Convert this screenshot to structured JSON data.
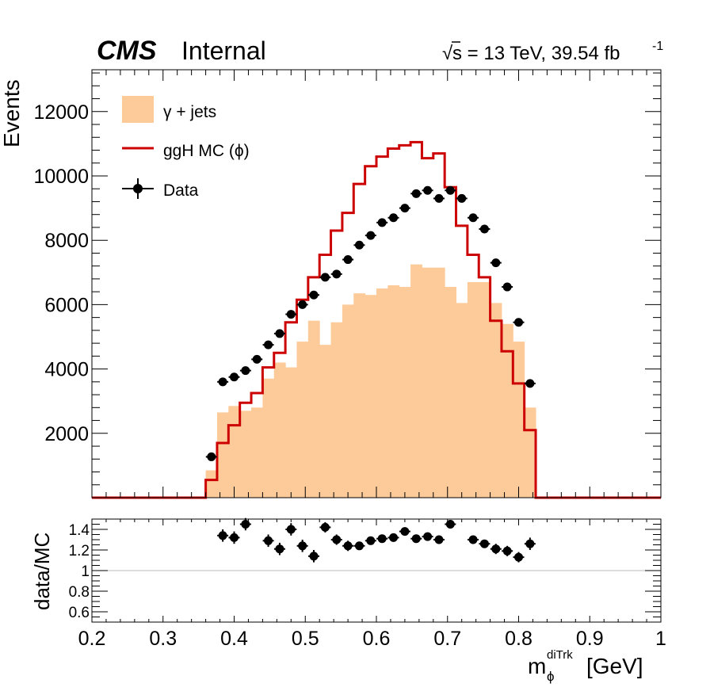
{
  "header": {
    "experiment": "CMS",
    "status": "Internal",
    "energy_lumi_pre": "s = 13 TeV, 39.54 fb",
    "lumi_exp": "-1"
  },
  "legend": {
    "gjets": "γ + jets",
    "ggh": "ggH MC (ϕ)",
    "data": "Data"
  },
  "colors": {
    "gjets_fill": "#FDCA99",
    "ggh_line": "#CC0000",
    "data_marker": "#000000",
    "ratio_line": "#BBBBBB"
  },
  "chart_data": [
    {
      "type": "histogram",
      "ylabel": "Events",
      "xlim": [
        0.2,
        1.0
      ],
      "ylim": [
        0,
        13300
      ],
      "y_ticks": [
        2000,
        4000,
        6000,
        8000,
        10000,
        12000
      ],
      "bin_edges": [
        0.36,
        0.376,
        0.392,
        0.408,
        0.424,
        0.44,
        0.456,
        0.472,
        0.488,
        0.504,
        0.52,
        0.536,
        0.552,
        0.568,
        0.584,
        0.6,
        0.616,
        0.632,
        0.648,
        0.664,
        0.68,
        0.696,
        0.712,
        0.728,
        0.744,
        0.76,
        0.776,
        0.792,
        0.808,
        0.824
      ],
      "series": [
        {
          "name": "γ + jets",
          "kind": "filled-bars",
          "values": [
            850,
            2650,
            2850,
            2700,
            2800,
            3700,
            4200,
            4050,
            4850,
            5500,
            4750,
            5450,
            6000,
            6350,
            6300,
            6500,
            6600,
            6550,
            7250,
            7150,
            7150,
            6550,
            6050,
            6700,
            6700,
            6050,
            5400,
            4850,
            2800
          ]
        },
        {
          "name": "ggH MC (ϕ)",
          "kind": "step",
          "values": [
            550,
            1700,
            2250,
            2950,
            3250,
            4050,
            4500,
            5450,
            6150,
            6850,
            7550,
            8300,
            8850,
            9750,
            10300,
            10600,
            10850,
            10950,
            11050,
            10550,
            10700,
            9650,
            8450,
            7550,
            6850,
            5500,
            4550,
            3550,
            2100
          ]
        },
        {
          "name": "Data",
          "kind": "points",
          "x": [
            0.368,
            0.384,
            0.4,
            0.416,
            0.432,
            0.448,
            0.464,
            0.48,
            0.496,
            0.512,
            0.528,
            0.544,
            0.56,
            0.576,
            0.592,
            0.608,
            0.624,
            0.64,
            0.656,
            0.672,
            0.688,
            0.704,
            0.72,
            0.736,
            0.752,
            0.768,
            0.784,
            0.8,
            0.816
          ],
          "y": [
            1270,
            3600,
            3750,
            3950,
            4300,
            4750,
            5100,
            5700,
            6000,
            6300,
            6850,
            6950,
            7400,
            7850,
            8150,
            8550,
            8700,
            9000,
            9450,
            9550,
            9300,
            9550,
            9300,
            8700,
            8350,
            7300,
            6550,
            5450,
            3550
          ]
        }
      ]
    },
    {
      "type": "scatter",
      "ylabel": "data/MC",
      "xlabel_main": "m",
      "xlabel_sub": "ϕ",
      "xlabel_sup": "diTrk",
      "xlabel_unit": " [GeV]",
      "xlim": [
        0.2,
        1.0
      ],
      "ylim": [
        0.5,
        1.5
      ],
      "y_ticks": [
        0.6,
        0.8,
        1,
        1.2,
        1.4
      ],
      "x_ticks": [
        0.2,
        0.3,
        0.4,
        0.5,
        0.6,
        0.7,
        0.8,
        0.9,
        1.0
      ],
      "reference_line": 1,
      "x": [
        0.384,
        0.4,
        0.416,
        0.448,
        0.464,
        0.48,
        0.496,
        0.512,
        0.528,
        0.544,
        0.56,
        0.576,
        0.592,
        0.608,
        0.624,
        0.64,
        0.656,
        0.672,
        0.688,
        0.704,
        0.736,
        0.752,
        0.768,
        0.784,
        0.8,
        0.816
      ],
      "y": [
        1.34,
        1.32,
        1.45,
        1.29,
        1.21,
        1.4,
        1.24,
        1.14,
        1.42,
        1.3,
        1.24,
        1.24,
        1.29,
        1.31,
        1.32,
        1.38,
        1.31,
        1.33,
        1.3,
        1.45,
        1.3,
        1.26,
        1.21,
        1.19,
        1.13,
        1.26
      ],
      "err": [
        0.06,
        0.06,
        0.06,
        0.06,
        0.06,
        0.06,
        0.06,
        0.06,
        0.05,
        0.05,
        0.05,
        0.04,
        0.04,
        0.04,
        0.04,
        0.04,
        0.04,
        0.04,
        0.04,
        0.04,
        0.04,
        0.04,
        0.05,
        0.05,
        0.05,
        0.06
      ]
    }
  ]
}
